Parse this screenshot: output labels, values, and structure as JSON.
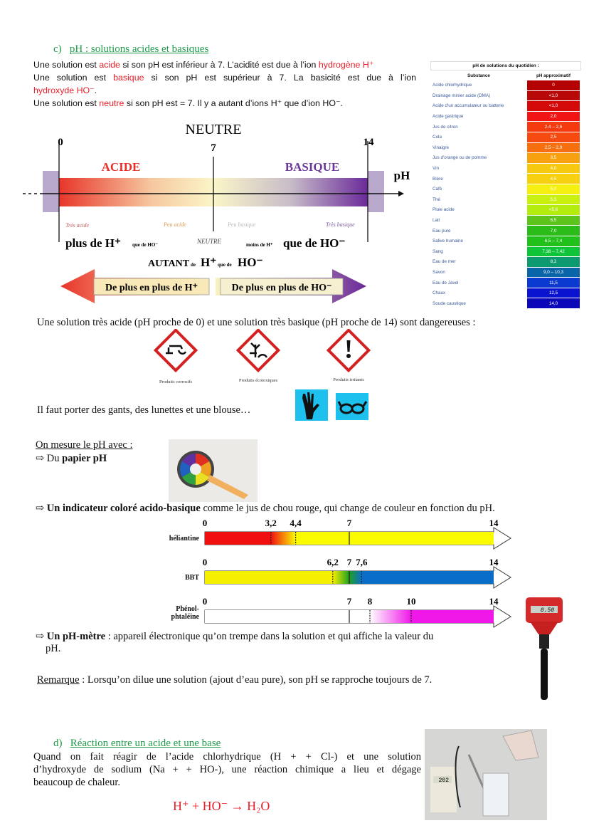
{
  "section_c": {
    "heading_prefix": "c)",
    "heading": "pH : solutions acides et basiques",
    "line1": [
      "Une solution est ",
      "acide",
      " si son pH est inférieur à 7. L’acidité est due à l’ion ",
      "hydrogène H⁺"
    ],
    "line2": [
      "Une solution est ",
      "basique",
      " si son pH est supérieur à 7. La basicité est due à l’ion"
    ],
    "line3": [
      "hydroxyde HO⁻",
      "."
    ],
    "line4": [
      "Une solution est ",
      "neutre",
      " si son pH est = 7. Il y a autant d’ions H⁺ que d’ion HO⁻."
    ]
  },
  "scale": {
    "neutre_title": "NEUTRE",
    "ticks": [
      "0",
      "7",
      "14"
    ],
    "acide": "ACIDE",
    "basique": "BASIQUE",
    "axis_label": "pH",
    "tres_acide": "Très acide",
    "peu_acide": "Peu acide",
    "peu_basique": "Peu basique",
    "tres_basique": "Très basique",
    "plus_de_h": "plus de H⁺",
    "que_de_ho": "que de HO⁻",
    "neutre_small": "NEUTRE",
    "moins_de_h": "moins de H⁺",
    "que_de_ho_big": "que de HO⁻",
    "autant": "AUTANT",
    "de": "de",
    "h_plus": "H⁺",
    "que_de": "que de",
    "ho_minus": "HO⁻",
    "arrow_left": "De plus en plus de H⁺",
    "arrow_right": "De plus en plus de HO⁻",
    "colors": {
      "acid": "#e8352a",
      "neutral": "#fbf6c8",
      "base": "#6a2a9a"
    }
  },
  "ph_table": {
    "title": "pH de solutions du quotidien :",
    "col_substance": "Substance",
    "col_ph": "pH approximatif",
    "rows": [
      {
        "name": "Acide chlorhydrique",
        "ph": "0",
        "color": "#b30000"
      },
      {
        "name": "Drainage minier acide (DMA)",
        "ph": "<1,0",
        "color": "#b80808"
      },
      {
        "name": "Acide d'un accumulateur ou batterie",
        "ph": "<1,0",
        "color": "#d40a0a"
      },
      {
        "name": "Acide gastrique",
        "ph": "2,0",
        "color": "#f01414"
      },
      {
        "name": "Jus de citron",
        "ph": "2,4 – 2,6",
        "color": "#f53a10"
      },
      {
        "name": "Cola",
        "ph": "2,5",
        "color": "#f54a10"
      },
      {
        "name": "Vinaigre",
        "ph": "2,5 – 2,9",
        "color": "#f77010"
      },
      {
        "name": "Jus d'orange ou de pomme",
        "ph": "3,5",
        "color": "#f7a010"
      },
      {
        "name": "Vin",
        "ph": "4,0",
        "color": "#f7c810"
      },
      {
        "name": "Bière",
        "ph": "4,5",
        "color": "#f7d010"
      },
      {
        "name": "Café",
        "ph": "5,0",
        "color": "#f5f010"
      },
      {
        "name": "Thé",
        "ph": "5,5",
        "color": "#c8f010"
      },
      {
        "name": "Pluie acide",
        "ph": "<5,6",
        "color": "#b4ec10"
      },
      {
        "name": "Lait",
        "ph": "6,5",
        "color": "#5cc41a"
      },
      {
        "name": "Eau pure",
        "ph": "7,0",
        "color": "#2cbc1a"
      },
      {
        "name": "Salive humaine",
        "ph": "6,5 – 7,4",
        "color": "#22c01a"
      },
      {
        "name": "Sang",
        "ph": "7,38 – 7,42",
        "color": "#10c43a"
      },
      {
        "name": "Eau de mer",
        "ph": "8,2",
        "color": "#0e9a70"
      },
      {
        "name": "Savon",
        "ph": "9,0 – 10,3",
        "color": "#0a64a8"
      },
      {
        "name": "Eau de Javel",
        "ph": "11,5",
        "color": "#0a3ad0"
      },
      {
        "name": "Chaux",
        "ph": "12,5",
        "color": "#0a14d0"
      },
      {
        "name": "Soude caustique",
        "ph": "14,0",
        "color": "#0a08b8"
      }
    ]
  },
  "danger": {
    "sentence": "Une solution très acide (pH proche de 0) et une solution très basique (pH proche de 14) sont dangereuses :",
    "pictograms": [
      {
        "label": "Produits corrosifs",
        "icon": "corrosive-icon"
      },
      {
        "label": "Produits écotoxiques",
        "icon": "environment-icon"
      },
      {
        "label": "Produits irritants",
        "icon": "exclamation-icon"
      }
    ],
    "protection": "Il faut porter des gants, des lunettes et une blouse…",
    "protection_icons": [
      "gloves-icon",
      "glasses-icon"
    ],
    "protection_color": "#1ec0ee"
  },
  "measure": {
    "title": "On mesure le pH avec :",
    "item1_prefix": "⇨ Du ",
    "item1_bold": "papier pH",
    "item2_bold": "Un indicateur coloré acido-basique",
    "item2_rest": " comme le jus de chou rouge, qui change de couleur en fonction du pH.",
    "item3_bold": "Un pH-mètre",
    "item3_rest": " : appareil électronique qu’on trempe dans la solution et qui affiche la valeur du",
    "item3_rest2": "pH.",
    "phmeter_display": "8.50",
    "remark_label": "Remarque",
    "remark_text": " : Lorsqu’on dilue une solution (ajout d’eau pure), son pH se rapproche toujours de 7."
  },
  "indicators": [
    {
      "name": "héliantine",
      "ticks": [
        "0",
        "3,2",
        "4,4",
        "7",
        "14"
      ],
      "tick_values": [
        0,
        3.2,
        4.4,
        7,
        14
      ],
      "acid_color": "#f01010",
      "base_color": "#fafa00",
      "zone": [
        3.2,
        4.4
      ]
    },
    {
      "name": "BBT",
      "ticks": [
        "0",
        "6,2",
        "7",
        "7,6",
        "14"
      ],
      "tick_values": [
        0,
        6.2,
        7,
        7.6,
        14
      ],
      "acid_color": "#f5f000",
      "mid_color": "#20a020",
      "base_color": "#0a6ec8",
      "zone": [
        6.2,
        7.6
      ]
    },
    {
      "name_line1": "Phénol-",
      "name_line2": "phtaléine",
      "ticks": [
        "0",
        "7",
        "8",
        "10",
        "14"
      ],
      "tick_values": [
        0,
        7,
        8,
        10,
        14
      ],
      "acid_color": "#ffffff",
      "base_color": "#f018e8",
      "zone": [
        8,
        10
      ]
    }
  ],
  "section_d": {
    "heading_prefix": "d)",
    "heading": "Réaction entre un acide et une base",
    "para": [
      "Quand on fait réagir de l’acide chlorhydrique (H + + Cl-) et une solution",
      "d’hydroxyde de sodium (Na + + HO-), une réaction chimique a lieu et dégage",
      "beaucoup de chaleur."
    ],
    "equation_left": "H⁺ + HO⁻ ",
    "equation_arrow": "→",
    "equation_right": " H₂O",
    "photo_display": "202"
  }
}
